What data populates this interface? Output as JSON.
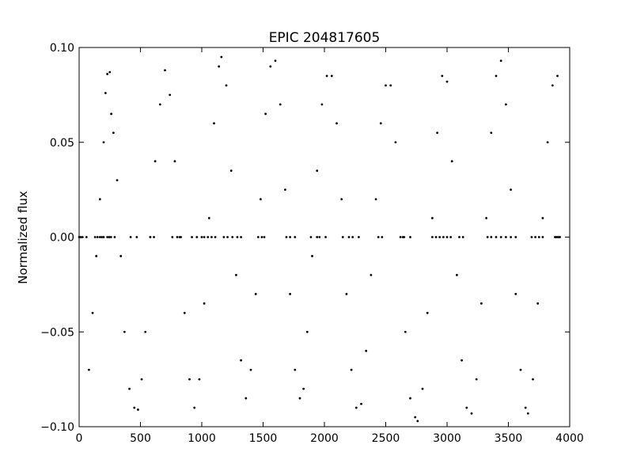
{
  "chart_data": {
    "type": "scatter",
    "title": "EPIC 204817605",
    "xlabel": "",
    "ylabel": "Normalized flux",
    "xlim": [
      0,
      4000
    ],
    "ylim": [
      -0.1,
      0.1
    ],
    "xticks": [
      0,
      500,
      1000,
      1500,
      2000,
      2500,
      3000,
      3500,
      4000
    ],
    "yticks": [
      -0.1,
      -0.05,
      0.0,
      0.05,
      0.1
    ],
    "xtick_labels": [
      "0",
      "500",
      "1000",
      "1500",
      "2000",
      "2500",
      "3000",
      "3500",
      "4000"
    ],
    "ytick_labels": [
      "−0.10",
      "−0.05",
      "0.00",
      "0.05",
      "0.10"
    ],
    "grid": false,
    "marker_color": "#000000",
    "series": [
      {
        "points": {
          "x": [
            0,
            80,
            110,
            140,
            170,
            200,
            215,
            230,
            250,
            262,
            280,
            310,
            340,
            370,
            410,
            450,
            480,
            510,
            540,
            580,
            620,
            660,
            700,
            740,
            780,
            820,
            860,
            900,
            940,
            980,
            1020,
            1060,
            1100,
            1140,
            1160,
            1200,
            1240,
            1280,
            1320,
            1360,
            1400,
            1440,
            1480,
            1520,
            1560,
            1600,
            1640,
            1680,
            1720,
            1760,
            1800,
            1830,
            1860,
            1900,
            1940,
            1980,
            2020,
            2060,
            2100,
            2140,
            2180,
            2220,
            2260,
            2300,
            2340,
            2380,
            2420,
            2460,
            2500,
            2540,
            2580,
            2620,
            2660,
            2700,
            2740,
            2760,
            2800,
            2840,
            2880,
            2920,
            2960,
            3000,
            3040,
            3080,
            3120,
            3160,
            3200,
            3240,
            3280,
            3320,
            3360,
            3400,
            3440,
            3480,
            3520,
            3560,
            3600,
            3640,
            3660,
            3700,
            3740,
            3780,
            3820,
            3860,
            3900
          ],
          "y": [
            0.0,
            -0.07,
            -0.04,
            -0.01,
            0.02,
            0.05,
            0.076,
            0.086,
            0.087,
            0.065,
            0.055,
            0.03,
            -0.01,
            -0.05,
            -0.08,
            -0.09,
            -0.091,
            -0.075,
            -0.05,
            0.0,
            0.04,
            0.07,
            0.088,
            0.075,
            0.04,
            0.0,
            -0.04,
            -0.075,
            -0.09,
            -0.075,
            -0.035,
            0.01,
            0.06,
            0.09,
            0.095,
            0.08,
            0.035,
            -0.02,
            -0.065,
            -0.085,
            -0.07,
            -0.03,
            0.02,
            0.065,
            0.09,
            0.093,
            0.07,
            0.025,
            -0.03,
            -0.07,
            -0.085,
            -0.08,
            -0.05,
            -0.01,
            0.035,
            0.07,
            0.085,
            0.085,
            0.06,
            0.02,
            -0.03,
            -0.07,
            -0.09,
            -0.088,
            -0.06,
            -0.02,
            0.02,
            0.06,
            0.08,
            0.08,
            0.05,
            0.0,
            -0.05,
            -0.085,
            -0.095,
            -0.097,
            -0.08,
            -0.04,
            0.01,
            0.055,
            0.085,
            0.082,
            0.04,
            -0.02,
            -0.065,
            -0.09,
            -0.093,
            -0.075,
            -0.035,
            0.01,
            0.055,
            0.085,
            0.093,
            0.07,
            0.025,
            -0.03,
            -0.07,
            -0.09,
            -0.093,
            -0.075,
            -0.035,
            0.01,
            0.05,
            0.08,
            0.085
          ]
        }
      },
      {
        "points": {
          "x": [
            10,
            25,
            60,
            130,
            150,
            170,
            185,
            200,
            230,
            245,
            260,
            290,
            420,
            470,
            580,
            610,
            760,
            800,
            830,
            920,
            960,
            1000,
            1020,
            1050,
            1080,
            1110,
            1180,
            1210,
            1250,
            1290,
            1320,
            1460,
            1490,
            1510,
            1690,
            1720,
            1760,
            1890,
            1940,
            1960,
            2010,
            2150,
            2200,
            2230,
            2280,
            2440,
            2470,
            2640,
            2650,
            2700,
            2880,
            2910,
            2940,
            2970,
            3000,
            3030,
            3100,
            3130,
            3330,
            3360,
            3400,
            3440,
            3480,
            3520,
            3560,
            3690,
            3720,
            3750,
            3780,
            3880,
            3890,
            3900,
            3910,
            3920
          ],
          "y": [
            0,
            0,
            0,
            0,
            0,
            0,
            0,
            0,
            0,
            0,
            0,
            0,
            0,
            0,
            0,
            0,
            0,
            0,
            0,
            0,
            0,
            0,
            0,
            0,
            0,
            0,
            0,
            0,
            0,
            0,
            0,
            0,
            0,
            0,
            0,
            0,
            0,
            0,
            0,
            0,
            0,
            0,
            0,
            0,
            0,
            0,
            0,
            0,
            0,
            0,
            0,
            0,
            0,
            0,
            0,
            0,
            0,
            0,
            0,
            0,
            0,
            0,
            0,
            0,
            0,
            0,
            0,
            0,
            0,
            0,
            0,
            0,
            0,
            0
          ]
        }
      }
    ]
  }
}
